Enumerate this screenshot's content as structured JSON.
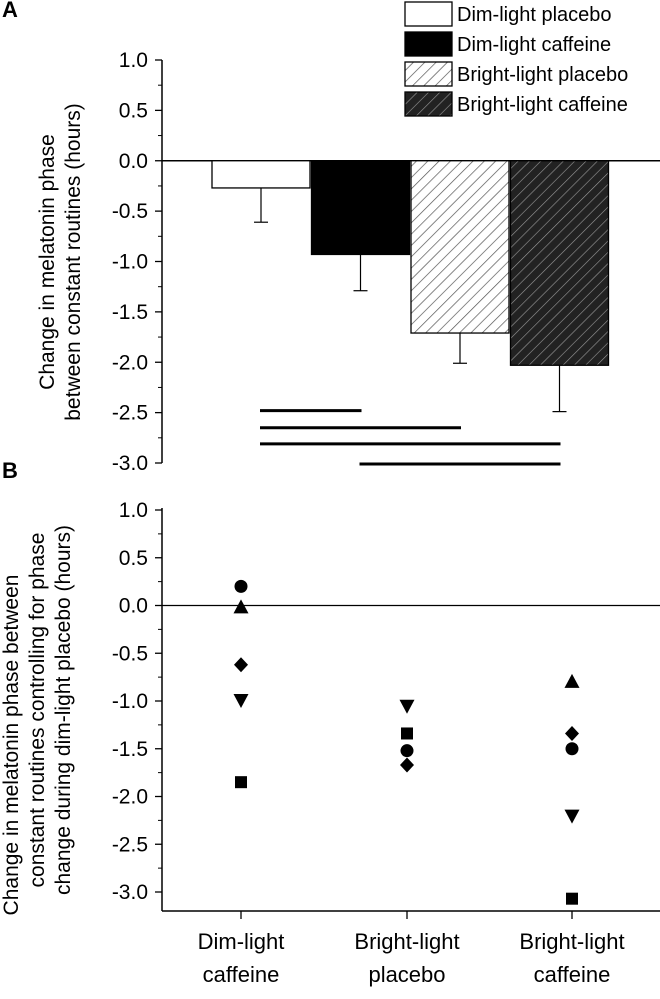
{
  "chart_data": [
    {
      "panel": "A",
      "type": "bar",
      "ylabel_lines": [
        "Change in melatonin phase",
        "between constant routines (hours)"
      ],
      "ylim": [
        -3.0,
        1.0
      ],
      "yticks": [
        "1.0",
        "0.5",
        "0.0",
        "-0.5",
        "-1.0",
        "-1.5",
        "-2.0",
        "-2.5",
        "-3.0"
      ],
      "ytick_values": [
        1.0,
        0.5,
        0.0,
        -0.5,
        -1.0,
        -1.5,
        -2.0,
        -2.5,
        -3.0
      ],
      "legend_position": "top-right",
      "series": [
        {
          "name": "Dim-light placebo",
          "value": -0.27,
          "error": 0.34,
          "fill": "white"
        },
        {
          "name": "Dim-light caffeine",
          "value": -0.93,
          "error": 0.36,
          "fill": "black"
        },
        {
          "name": "Bright-light placebo",
          "value": -1.71,
          "error": 0.3,
          "fill": "hatch-light"
        },
        {
          "name": "Bright-light caffeine",
          "value": -2.03,
          "error": 0.46,
          "fill": "hatch-dark"
        }
      ],
      "significance_lines": [
        {
          "from": 0,
          "to": 1,
          "y": -2.48
        },
        {
          "from": 0,
          "to": 2,
          "y": -2.65
        },
        {
          "from": 0,
          "to": 3,
          "y": -2.81
        },
        {
          "from": 1,
          "to": 3,
          "y": -3.01
        }
      ]
    },
    {
      "panel": "B",
      "type": "scatter",
      "ylabel_lines": [
        "Change in melatonin phase between",
        "constant routines controlling for phase",
        "change during dim-light placebo (hours)"
      ],
      "ylim": [
        -3.2,
        1.0
      ],
      "yticks": [
        "1.0",
        "0.5",
        "0.0",
        "-0.5",
        "-1.0",
        "-1.5",
        "-2.0",
        "-2.5",
        "-3.0"
      ],
      "ytick_values": [
        1.0,
        0.5,
        0.0,
        -0.5,
        -1.0,
        -1.5,
        -2.0,
        -2.5,
        -3.0
      ],
      "categories": [
        {
          "line1": "Dim-light",
          "line2": "caffeine"
        },
        {
          "line1": "Bright-light",
          "line2": "placebo"
        },
        {
          "line1": "Bright-light",
          "line2": "caffeine"
        }
      ],
      "series": [
        {
          "marker": "circle",
          "values": [
            0.2,
            -1.52,
            -1.5
          ]
        },
        {
          "marker": "triangle-up",
          "values": [
            -0.02,
            null,
            -0.8
          ]
        },
        {
          "marker": "diamond",
          "values": [
            -0.62,
            -1.67,
            -1.34
          ]
        },
        {
          "marker": "triangle-down",
          "values": [
            -0.99,
            -1.05,
            -2.2
          ]
        },
        {
          "marker": "square",
          "values": [
            -1.85,
            -1.34,
            -3.07
          ]
        }
      ]
    }
  ]
}
